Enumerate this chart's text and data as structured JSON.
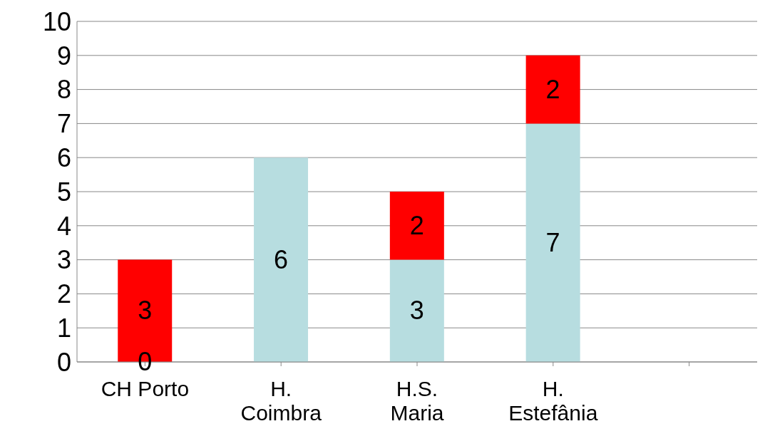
{
  "chart_data": {
    "type": "bar",
    "stacked": true,
    "categories": [
      "CH Porto",
      "H. Coimbra",
      "H.S. Maria",
      "H. Estefânia",
      null
    ],
    "series": [
      {
        "color": "#b7dde0",
        "values": [
          0,
          6,
          3,
          7,
          null
        ]
      },
      {
        "color": "#ff0000",
        "values": [
          3,
          null,
          2,
          2,
          null
        ]
      }
    ],
    "ylim": [
      0,
      10
    ],
    "yticks": [
      0,
      1,
      2,
      3,
      4,
      5,
      6,
      7,
      8,
      9,
      10
    ],
    "grid": "y",
    "legend": false,
    "data_labels": true
  }
}
